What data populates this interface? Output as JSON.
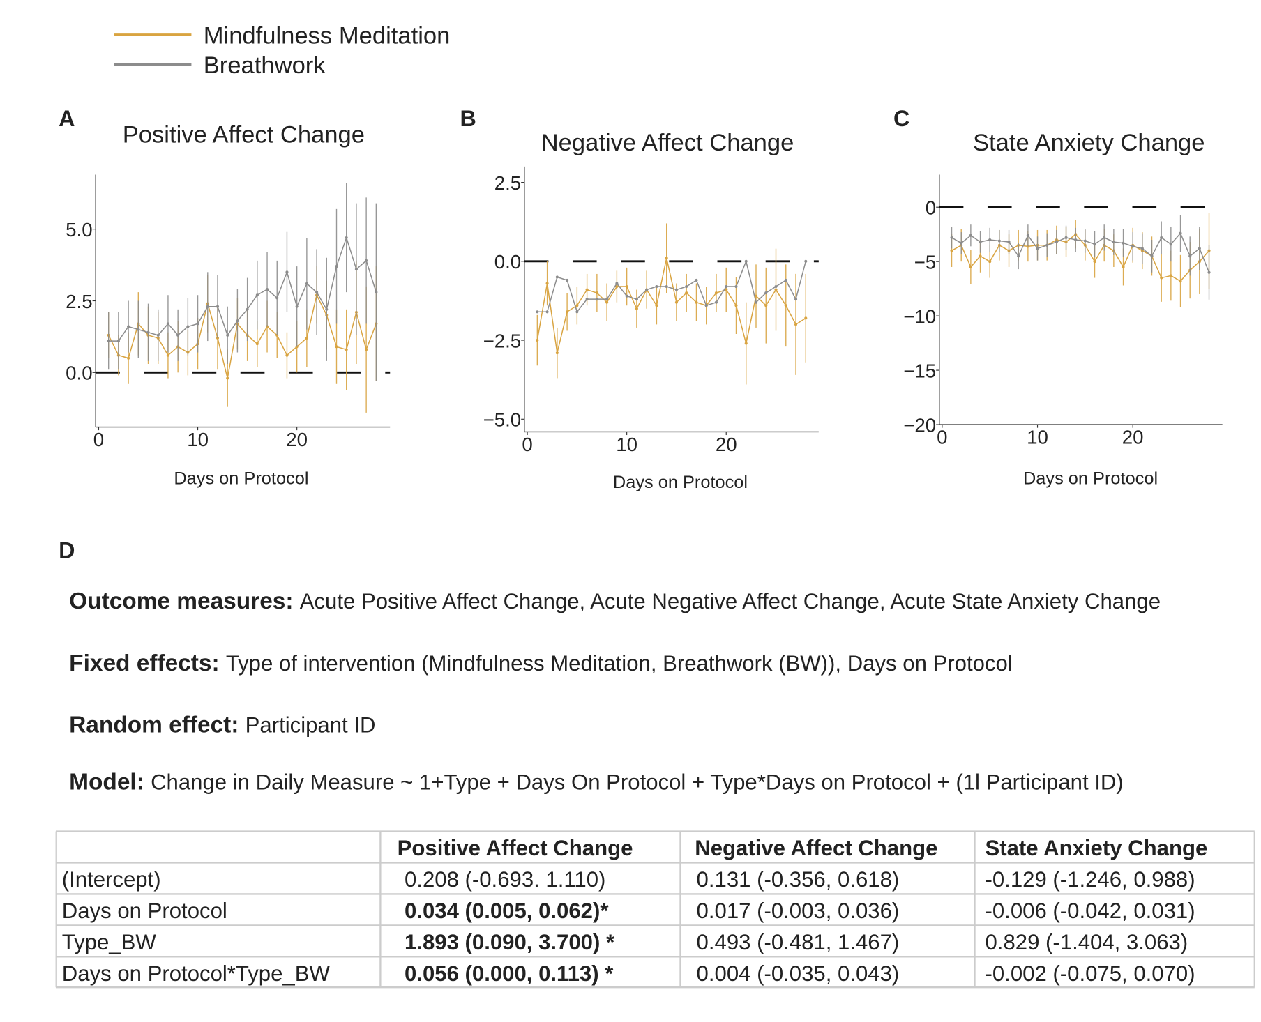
{
  "chart_data": [
    {
      "type": "line",
      "panel": "A",
      "title": "Positive Affect Change",
      "xlabel": "Days on Protocol",
      "x": [
        1,
        2,
        3,
        4,
        5,
        6,
        7,
        8,
        9,
        10,
        11,
        12,
        13,
        14,
        15,
        16,
        17,
        18,
        19,
        20,
        21,
        22,
        23,
        24,
        25,
        26,
        27,
        28
      ],
      "xlim": [
        -0.3,
        29.4
      ],
      "ylim": [
        -1.9,
        6.9
      ],
      "xticks": [
        0,
        10,
        20
      ],
      "yticks": [
        {
          "value": 0,
          "label": "0.0"
        },
        2.5,
        {
          "value": 5,
          "label": "5.0"
        }
      ],
      "reference_line": 0,
      "series": [
        {
          "name": "Mindfulness Meditation",
          "color": "#d9a441",
          "values": [
            1.3,
            0.6,
            0.5,
            1.7,
            1.3,
            1.2,
            0.6,
            0.9,
            0.7,
            1.0,
            2.4,
            1.2,
            -0.2,
            1.7,
            1.3,
            1.0,
            1.6,
            1.3,
            0.6,
            0.9,
            1.2,
            2.7,
            2.0,
            0.9,
            0.8,
            2.1,
            0.8,
            1.7
          ],
          "errors": [
            0.8,
            0.7,
            0.9,
            1.1,
            1.0,
            0.9,
            0.8,
            0.9,
            0.8,
            0.9,
            1.0,
            1.1,
            1.0,
            0.9,
            0.9,
            0.8,
            0.9,
            0.8,
            0.8,
            0.9,
            1.0,
            1.0,
            1.2,
            1.3,
            1.4,
            1.8,
            2.2,
            2.0
          ]
        },
        {
          "name": "Breathwork",
          "color": "#8c8c8c",
          "values": [
            1.1,
            1.1,
            1.6,
            1.5,
            1.4,
            1.3,
            1.7,
            1.3,
            1.6,
            1.7,
            2.3,
            2.3,
            1.3,
            1.8,
            2.2,
            2.7,
            2.9,
            2.6,
            3.5,
            2.3,
            3.1,
            2.8,
            2.2,
            3.7,
            4.7,
            3.6,
            3.9,
            2.8
          ],
          "errors": [
            1.0,
            1.0,
            0.9,
            1.0,
            1.0,
            0.9,
            1.0,
            0.9,
            1.0,
            1.0,
            1.2,
            1.1,
            1.0,
            1.1,
            1.1,
            1.2,
            1.3,
            1.3,
            1.4,
            1.4,
            1.6,
            1.5,
            1.8,
            2.0,
            1.9,
            2.3,
            2.2,
            3.1
          ]
        }
      ]
    },
    {
      "type": "line",
      "panel": "B",
      "title": "Negative Affect Change",
      "xlabel": "Days on Protocol",
      "x": [
        1,
        2,
        3,
        4,
        5,
        6,
        7,
        8,
        9,
        10,
        11,
        12,
        13,
        14,
        15,
        16,
        17,
        18,
        19,
        20,
        21,
        22,
        23,
        24,
        25,
        26,
        27,
        28
      ],
      "xlim": [
        -0.3,
        29.3
      ],
      "ylim": [
        -5.4,
        3.0
      ],
      "xticks": [
        0,
        10,
        20
      ],
      "yticks": [
        {
          "value": -5,
          "label": "−5.0"
        },
        {
          "value": -2.5,
          "label": "−2.5"
        },
        {
          "value": 0,
          "label": "0.0"
        },
        2.5
      ],
      "reference_line": 0,
      "series": [
        {
          "color": "#d9a441",
          "values": [
            -2.5,
            -0.7,
            -2.9,
            -1.6,
            -1.4,
            -0.9,
            -1.0,
            -1.3,
            -0.8,
            -0.8,
            -1.5,
            -0.9,
            -1.4,
            0.1,
            -1.3,
            -1.0,
            -1.3,
            -1.4,
            -1.0,
            -0.9,
            -1.4,
            -2.6,
            -1.1,
            -1.4,
            -0.9,
            -1.4,
            -2.0,
            -1.8
          ],
          "errors": [
            0.8,
            0.7,
            0.8,
            0.6,
            0.6,
            0.5,
            0.6,
            0.6,
            0.5,
            0.6,
            0.6,
            0.6,
            0.6,
            1.1,
            0.6,
            0.6,
            0.6,
            0.6,
            0.6,
            0.7,
            0.9,
            1.3,
            1.0,
            1.2,
            1.3,
            1.3,
            1.6,
            1.4
          ]
        },
        {
          "color": "#8c8c8c",
          "values": [
            -1.6,
            -1.6,
            -0.5,
            -0.6,
            -1.6,
            -1.2,
            -1.2,
            -1.2,
            -0.7,
            -1.1,
            -1.2,
            -0.9,
            -0.8,
            -0.8,
            -0.9,
            -0.8,
            -0.6,
            -1.4,
            -1.3,
            -0.8,
            -0.8,
            0.0,
            -1.3,
            -1.0,
            -0.8,
            -0.6,
            -1.2,
            0.0
          ]
        }
      ]
    },
    {
      "type": "line",
      "panel": "C",
      "title": "State Anxiety Change",
      "xlabel": "Days on Protocol",
      "x": [
        1,
        2,
        3,
        4,
        5,
        6,
        7,
        8,
        9,
        10,
        11,
        12,
        13,
        14,
        15,
        16,
        17,
        18,
        19,
        20,
        21,
        22,
        23,
        24,
        25,
        26,
        27,
        28
      ],
      "xlim": [
        -0.3,
        29.4
      ],
      "ylim": [
        -20,
        3
      ],
      "xticks": [
        0,
        10,
        20
      ],
      "yticks": [
        {
          "value": -20,
          "label": "−20"
        },
        {
          "value": -15,
          "label": "−15"
        },
        {
          "value": -10,
          "label": "−10"
        },
        {
          "value": -5,
          "label": "−5"
        },
        0
      ],
      "reference_line": 0,
      "series": [
        {
          "color": "#d9a441",
          "values": [
            -4.0,
            -3.5,
            -5.5,
            -4.5,
            -5.0,
            -3.5,
            -4.0,
            -3.5,
            -3.6,
            -3.5,
            -3.5,
            -3.0,
            -3.2,
            -2.5,
            -3.5,
            -5.0,
            -3.5,
            -4.0,
            -5.5,
            -3.5,
            -4.0,
            -4.5,
            -6.5,
            -6.3,
            -6.8,
            -5.8,
            -5.0,
            -4.0
          ],
          "errors": [
            1.5,
            1.5,
            1.6,
            1.5,
            1.5,
            1.4,
            1.5,
            1.4,
            1.4,
            1.4,
            1.4,
            1.3,
            1.4,
            1.3,
            1.4,
            1.5,
            1.5,
            1.5,
            1.7,
            1.6,
            1.7,
            1.8,
            2.2,
            2.3,
            2.4,
            2.6,
            3.0,
            3.5
          ]
        },
        {
          "color": "#8c8c8c",
          "values": [
            -2.8,
            -3.3,
            -2.6,
            -3.2,
            -3.0,
            -3.1,
            -3.2,
            -4.5,
            -2.6,
            -3.8,
            -3.5,
            -3.2,
            -2.8,
            -3.0,
            -3.1,
            -3.4,
            -2.8,
            -3.2,
            -3.3,
            -3.6,
            -3.8,
            -4.5,
            -2.8,
            -3.4,
            -2.4,
            -4.5,
            -3.8,
            -6.0
          ],
          "errors": [
            1.0,
            1.0,
            1.0,
            1.0,
            1.1,
            1.0,
            1.1,
            1.2,
            1.0,
            1.1,
            1.1,
            1.1,
            1.1,
            1.1,
            1.1,
            1.2,
            1.2,
            1.2,
            1.3,
            1.3,
            1.4,
            1.5,
            1.5,
            1.6,
            1.7,
            1.8,
            2.0,
            2.5
          ]
        }
      ]
    }
  ],
  "panel_d": {
    "label": "D",
    "statements": [
      {
        "label": "Outcome measures:",
        "text": "Acute Positive Affect Change, Acute Negative Affect Change, Acute State Anxiety Change"
      },
      {
        "label": "Fixed effects:",
        "text": "Type of intervention (Mindfulness Meditation, Breathwork (BW)), Days on Protocol"
      },
      {
        "label": "Random effect:",
        "text": "Participant ID"
      },
      {
        "label": "Model:",
        "text": "Change in Daily Measure ~ 1+Type + Days On Protocol + Type*Days on Protocol + (1l Participant ID)"
      }
    ],
    "table": {
      "header": [
        "Positive Affect Change",
        "Negative Affect Change",
        "State Anxiety Change"
      ],
      "rows": [
        [
          "(Intercept)",
          "0.208 (-0.693. 1.110)",
          "0.131 (-0.356, 0.618)",
          "-0.129 (-1.246, 0.988)"
        ],
        [
          "Days on Protocol",
          "0.034 (0.005, 0.062)*",
          "0.017 (-0.003, 0.036)",
          "-0.006 (-0.042, 0.031)"
        ],
        [
          "Type_BW",
          "1.893 (0.090, 3.700) *",
          "0.493 (-0.481, 1.467)",
          " 0.829 (-1.404, 3.063)"
        ],
        [
          "Days on Protocol*Type_BW",
          "0.056 (0.000, 0.113) *",
          "0.004 (-0.035, 0.043)",
          "-0.002 (-0.075, 0.070)"
        ]
      ]
    }
  }
}
